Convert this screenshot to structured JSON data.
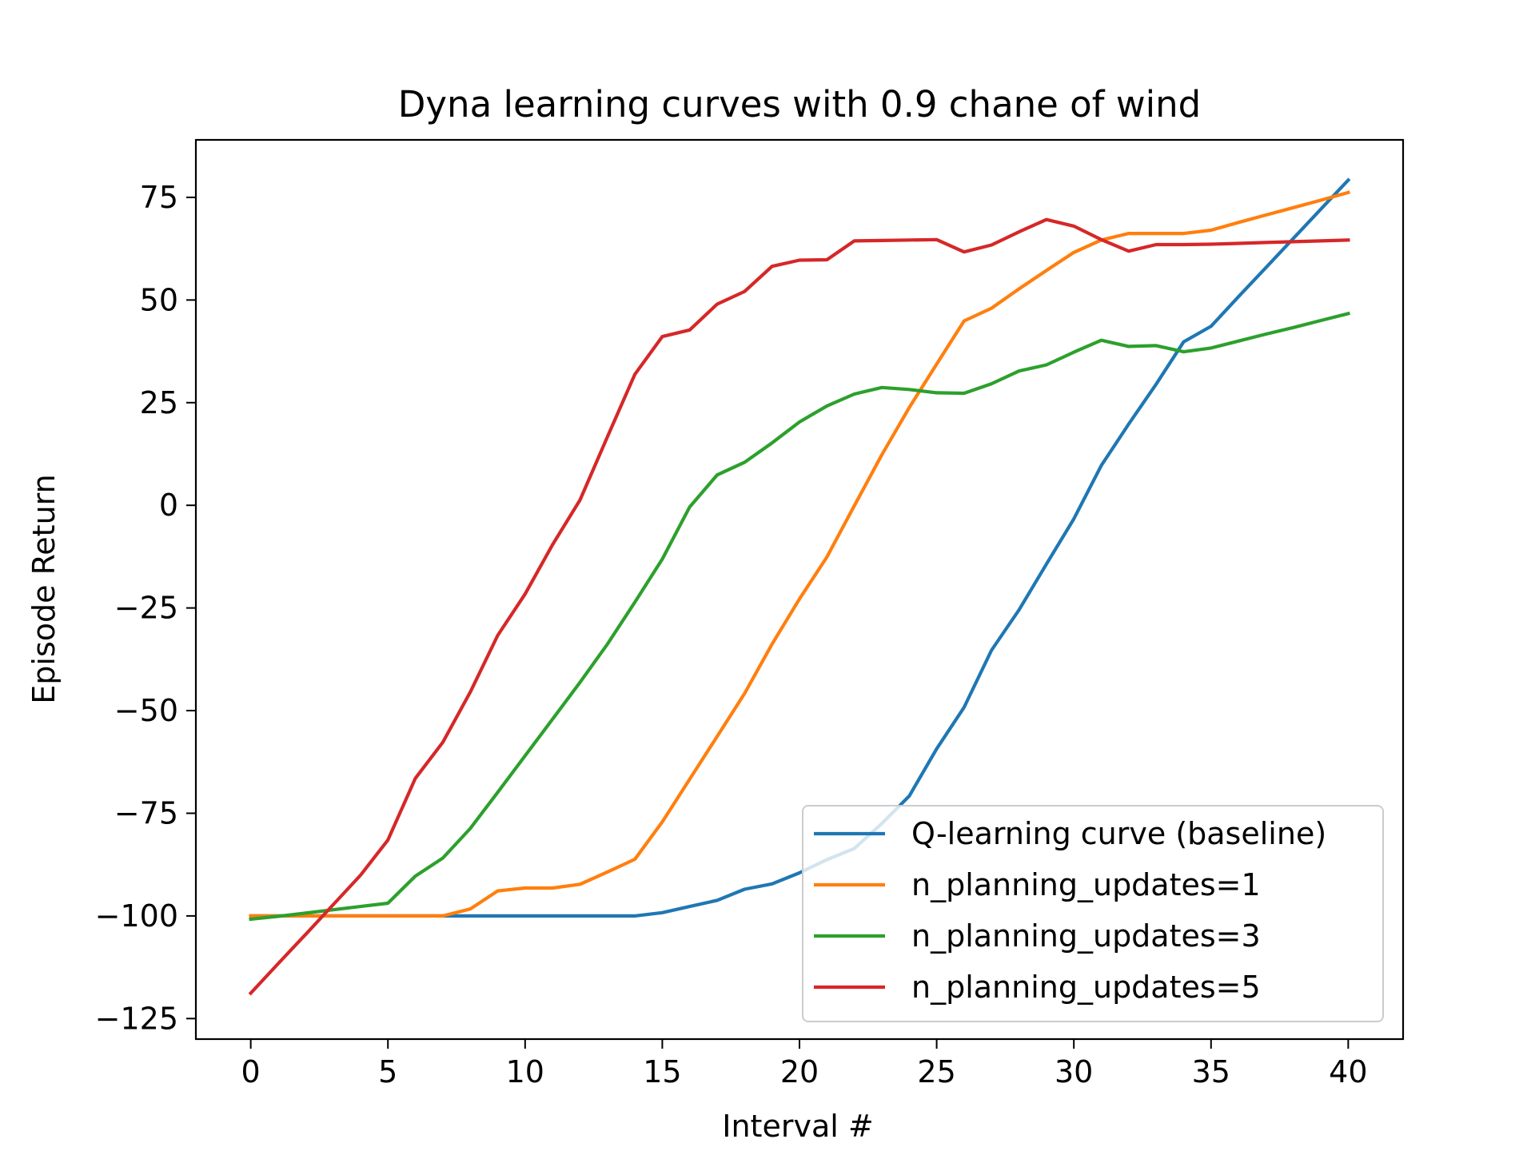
{
  "chart_data": {
    "type": "line",
    "title": "Dyna learning curves with 0.9 chane of wind",
    "xlabel": "Interval #",
    "ylabel": "Episode Return",
    "xlim": [
      -2,
      42
    ],
    "ylim": [
      -130,
      89
    ],
    "xticks": [
      0,
      5,
      10,
      15,
      20,
      25,
      30,
      35,
      40
    ],
    "yticks": [
      75,
      50,
      25,
      0,
      -25,
      -50,
      -75,
      -100,
      -125
    ],
    "xtick_labels": [
      "0",
      "5",
      "10",
      "15",
      "20",
      "25",
      "30",
      "35",
      "40"
    ],
    "ytick_labels": [
      "75",
      "50",
      "25",
      "0",
      "−25",
      "−50",
      "−75",
      "−100",
      "−125"
    ],
    "grid": false,
    "legend_position": "lower-right",
    "x": [
      0,
      1,
      2,
      3,
      4,
      5,
      6,
      7,
      8,
      9,
      10,
      11,
      12,
      13,
      14,
      15,
      16,
      17,
      18,
      19,
      20,
      21,
      22,
      23,
      24,
      25,
      26,
      27,
      28,
      29,
      30,
      31,
      32,
      33,
      34,
      35,
      36,
      37,
      38,
      39,
      40
    ],
    "series": [
      {
        "name": "Q-learning curve (baseline)",
        "color": "#1f77b4",
        "values": [
          -100,
          -100,
          -100,
          -100,
          -100,
          -100,
          -100,
          -100,
          -100,
          -100,
          -100,
          -100,
          -100,
          -100,
          -100,
          -99.2,
          -97.7,
          -96.2,
          -93.5,
          -92.2,
          -89.5,
          -86.3,
          -83.6,
          -77.5,
          -70.8,
          -59.3,
          -49.2,
          -35.3,
          -25.5,
          -14.3,
          -3.3,
          9.7,
          19.8,
          29.5,
          39.8,
          43.6,
          50.8,
          57.9,
          65.0,
          72.1,
          79.2
        ]
      },
      {
        "name": "n_planning_updates=1",
        "color": "#ff7f0e",
        "values": [
          -100,
          -100,
          -100,
          -100,
          -100,
          -100,
          -100,
          -100,
          -98.3,
          -93.9,
          -93.2,
          -93.2,
          -92.3,
          -89.3,
          -86.2,
          -77.1,
          -66.7,
          -56.3,
          -45.8,
          -33.8,
          -22.8,
          -12.6,
          -0.1,
          12.3,
          23.8,
          34.4,
          44.9,
          48.0,
          52.7,
          57.2,
          61.6,
          64.6,
          66.2,
          66.2,
          66.2,
          67.0,
          68.9,
          70.7,
          72.5,
          74.3,
          76.2
        ]
      },
      {
        "name": "n_planning_updates=3",
        "color": "#2ca02c",
        "values": [
          -100.8,
          -100.1,
          -99.3,
          -98.5,
          -97.7,
          -96.9,
          -90.3,
          -85.9,
          -78.7,
          -69.9,
          -61.0,
          -52.1,
          -43.1,
          -33.8,
          -23.6,
          -13.1,
          -0.4,
          7.4,
          10.5,
          15.2,
          20.3,
          24.2,
          27.1,
          28.7,
          28.2,
          27.4,
          27.3,
          29.6,
          32.7,
          34.2,
          37.3,
          40.2,
          38.7,
          38.9,
          37.4,
          38.3,
          40.0,
          41.7,
          43.3,
          45.0,
          46.7
        ]
      },
      {
        "name": "n_planning_updates=5",
        "color": "#d62728",
        "values": [
          -118.8,
          -111.6,
          -104.5,
          -97.3,
          -90.1,
          -81.5,
          -66.5,
          -57.7,
          -45.5,
          -31.7,
          -21.6,
          -9.6,
          1.3,
          16.7,
          31.9,
          41.1,
          42.7,
          49.0,
          52.1,
          58.2,
          59.7,
          59.8,
          64.4,
          64.5,
          64.6,
          64.7,
          61.7,
          63.4,
          66.6,
          69.6,
          68.0,
          64.7,
          61.9,
          63.5,
          63.5,
          63.6,
          63.8,
          64.0,
          64.2,
          64.4,
          64.6
        ]
      }
    ]
  }
}
